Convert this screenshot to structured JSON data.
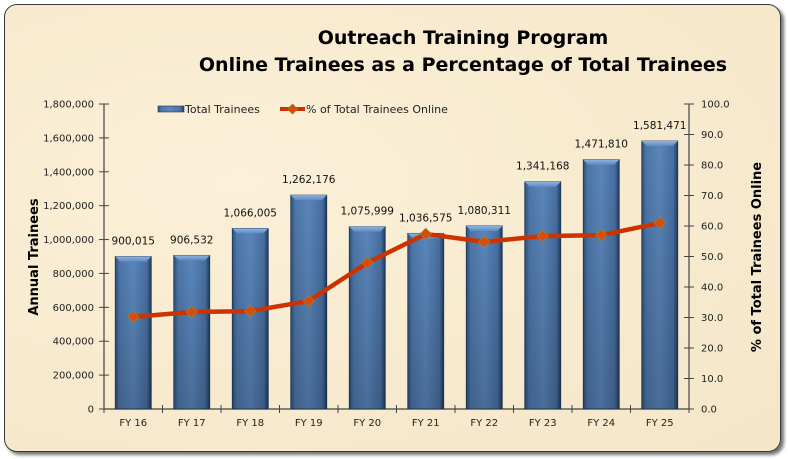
{
  "chart_data": {
    "type": "bar+line",
    "title": "Outreach Training Program",
    "subtitle": "Online Trainees as a Percentage of Total Trainees",
    "categories": [
      "FY 16",
      "FY 17",
      "FY 18",
      "FY 19",
      "FY 20",
      "FY 21",
      "FY 22",
      "FY 23",
      "FY 24",
      "FY 25"
    ],
    "series": [
      {
        "name": "Total Trainees",
        "type": "bar",
        "axis": "left",
        "color": "#4f79ab",
        "values": [
          900015,
          906532,
          1066005,
          1262176,
          1075999,
          1036575,
          1080311,
          1341168,
          1471810,
          1581471
        ],
        "labels": [
          "900,015",
          "906,532",
          "1,066,005",
          "1,262,176",
          "1,075,999",
          "1,036,575",
          "1,080,311",
          "1,341,168",
          "1,471,810",
          "1,581,471"
        ]
      },
      {
        "name": "% of Total Trainees Online",
        "type": "line",
        "axis": "right",
        "color": "#cc3300",
        "marker_color": "#d84a10",
        "values": [
          30.2,
          31.8,
          32.1,
          35.4,
          47.9,
          57.4,
          54.8,
          56.7,
          57.0,
          61.0
        ]
      }
    ],
    "ylabel": "Annual Trainees",
    "y2label": "% of Total Trainees Online",
    "xlabel": "",
    "ylim": [
      0,
      1800000
    ],
    "y2lim": [
      0,
      100
    ],
    "yticks": [
      "0",
      "200,000",
      "400,000",
      "600,000",
      "800,000",
      "1,000,000",
      "1,200,000",
      "1,400,000",
      "1,600,000",
      "1,800,000"
    ],
    "y2ticks": [
      "0.0",
      "10.0",
      "20.0",
      "30.0",
      "40.0",
      "50.0",
      "60.0",
      "70.0",
      "80.0",
      "90.0",
      "100.0"
    ],
    "grid": false,
    "legend_position": "top"
  }
}
